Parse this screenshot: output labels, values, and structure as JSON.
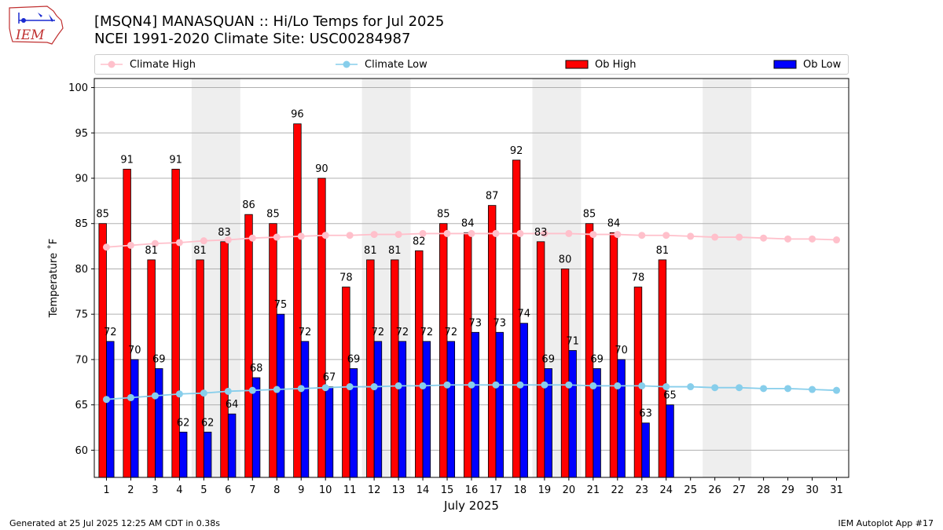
{
  "header": {
    "logo_text": "IEM",
    "title_line1": "[MSQN4] MANASQUAN :: Hi/Lo Temps for Jul 2025",
    "title_line2": "NCEI 1991-2020 Climate Site: USC00284987"
  },
  "legend": {
    "items": [
      {
        "label": "Climate High",
        "kind": "line",
        "color": "#ffc0cb"
      },
      {
        "label": "Climate Low",
        "kind": "line",
        "color": "#87ceeb"
      },
      {
        "label": "Ob High",
        "kind": "bar",
        "color": "#ff0000"
      },
      {
        "label": "Ob Low",
        "kind": "bar",
        "color": "#0000ff"
      }
    ]
  },
  "footer": {
    "left": "Generated at 25 Jul 2025 12:25 AM CDT in 0.38s",
    "right": "IEM Autoplot App #17"
  },
  "chart_data": {
    "type": "bar",
    "xlabel": "July 2025",
    "ylabel": "Temperature ˚F",
    "xlim": [
      0.5,
      31.5
    ],
    "ylim": [
      57,
      101
    ],
    "yticks": [
      60,
      65,
      70,
      75,
      80,
      85,
      90,
      95,
      100
    ],
    "grid": "horizontal",
    "legend_position": "top",
    "categories": [
      "1",
      "2",
      "3",
      "4",
      "5",
      "6",
      "7",
      "8",
      "9",
      "10",
      "11",
      "12",
      "13",
      "14",
      "15",
      "16",
      "17",
      "18",
      "19",
      "20",
      "21",
      "22",
      "23",
      "24",
      "25",
      "26",
      "27",
      "28",
      "29",
      "30",
      "31"
    ],
    "weekend_shading": [
      [
        5,
        6
      ],
      [
        12,
        13
      ],
      [
        19,
        20
      ],
      [
        26,
        27
      ]
    ],
    "shade_color": "#eeeeee",
    "series": [
      {
        "name": "Ob High",
        "kind": "bar",
        "color": "#ff0000",
        "values": [
          85,
          91,
          81,
          91,
          81,
          83,
          86,
          85,
          96,
          90,
          78,
          81,
          81,
          82,
          85,
          84,
          87,
          92,
          83,
          80,
          85,
          84,
          78,
          81,
          null,
          null,
          null,
          null,
          null,
          null,
          null
        ]
      },
      {
        "name": "Ob Low",
        "kind": "bar",
        "color": "#0000ff",
        "values": [
          72,
          70,
          69,
          62,
          62,
          64,
          68,
          75,
          72,
          67,
          69,
          72,
          72,
          72,
          72,
          73,
          73,
          74,
          69,
          71,
          69,
          70,
          63,
          65,
          null,
          null,
          null,
          null,
          null,
          null,
          null
        ]
      },
      {
        "name": "Climate High",
        "kind": "line",
        "color": "#ffc0cb",
        "values": [
          82.4,
          82.6,
          82.8,
          82.9,
          83.1,
          83.2,
          83.4,
          83.5,
          83.6,
          83.7,
          83.7,
          83.8,
          83.8,
          83.9,
          83.9,
          83.9,
          83.9,
          83.9,
          83.9,
          83.9,
          83.8,
          83.8,
          83.7,
          83.7,
          83.6,
          83.5,
          83.5,
          83.4,
          83.3,
          83.3,
          83.2
        ]
      },
      {
        "name": "Climate Low",
        "kind": "line",
        "color": "#87ceeb",
        "values": [
          65.6,
          65.8,
          66.0,
          66.2,
          66.3,
          66.5,
          66.6,
          66.7,
          66.8,
          66.9,
          67.0,
          67.0,
          67.1,
          67.1,
          67.2,
          67.2,
          67.2,
          67.2,
          67.2,
          67.2,
          67.1,
          67.1,
          67.1,
          67.0,
          67.0,
          66.9,
          66.9,
          66.8,
          66.8,
          66.7,
          66.6
        ]
      }
    ]
  }
}
